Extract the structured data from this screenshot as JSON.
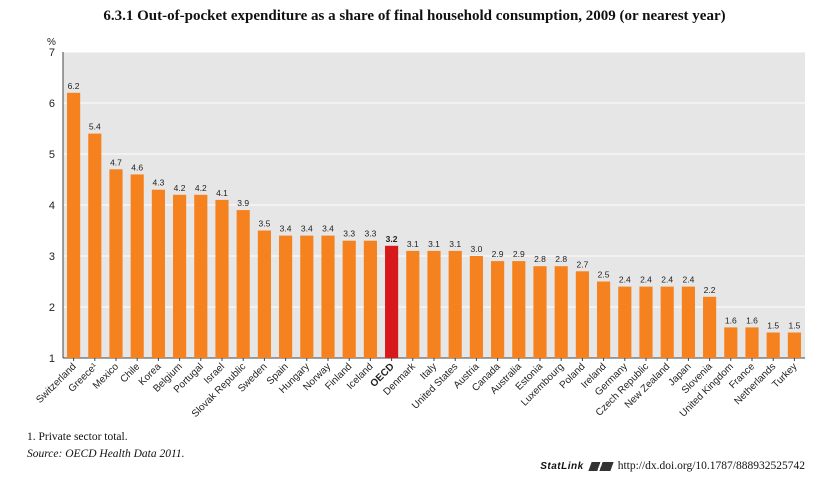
{
  "title": "6.3.1  Out-of-pocket expenditure as a share of final household consumption, 2009 (or nearest year)",
  "footnote": "1.  Private sector total.",
  "source_label": "Source:",
  "source_text": "OECD Health Data 2011.",
  "statlink_label": "StatLink",
  "statlink_url": "http://dx.doi.org/10.1787/888932525742",
  "colors": {
    "bar": "#f5821f",
    "highlight": "#d7191c",
    "plot_bg": "#e6e6e6",
    "grid": "#ffffff"
  },
  "chart_data": {
    "type": "bar",
    "title": "6.3.1  Out-of-pocket expenditure as a share of final household consumption, 2009 (or nearest year)",
    "ylabel": "%",
    "ylim": [
      1,
      7
    ],
    "yticks": [
      1,
      2,
      3,
      4,
      5,
      6,
      7
    ],
    "grid": true,
    "highlight": "OECD",
    "categories": [
      "Switzerland",
      "Greece¹",
      "Mexico",
      "Chile",
      "Korea",
      "Belgium",
      "Portugal",
      "Israel",
      "Slovak Republic",
      "Sweden",
      "Spain",
      "Hungary",
      "Norway",
      "Finland",
      "Iceland",
      "OECD",
      "Denmark",
      "Italy",
      "United States",
      "Austria",
      "Canada",
      "Australia",
      "Estonia",
      "Luxembourg",
      "Poland",
      "Ireland",
      "Germany",
      "Czech Republic",
      "New Zealand",
      "Japan",
      "Slovenia",
      "United Kingdom",
      "France",
      "Netherlands",
      "Turkey"
    ],
    "values": [
      6.2,
      5.4,
      4.7,
      4.6,
      4.3,
      4.2,
      4.2,
      4.1,
      3.9,
      3.5,
      3.4,
      3.4,
      3.4,
      3.3,
      3.3,
      3.2,
      3.1,
      3.1,
      3.1,
      3.0,
      2.9,
      2.9,
      2.8,
      2.8,
      2.7,
      2.5,
      2.4,
      2.4,
      2.4,
      2.4,
      2.2,
      1.6,
      1.6,
      1.5,
      1.5
    ],
    "value_labels": [
      "6.2",
      "5.4",
      "4.7",
      "4.6",
      "4.3",
      "4.2",
      "4.2",
      "4.1",
      "3.9",
      "3.5",
      "3.4",
      "3.4",
      "3.4",
      "3.3",
      "3.3",
      "3.2",
      "3.1",
      "3.1",
      "3.1",
      "3.0",
      "2.9",
      "2.9",
      "2.8",
      "2.8",
      "2.7",
      "2.5",
      "2.4",
      "2.4",
      "2.4",
      "2.4",
      "2.2",
      "1.6",
      "1.6",
      "1.5",
      "1.5"
    ]
  }
}
